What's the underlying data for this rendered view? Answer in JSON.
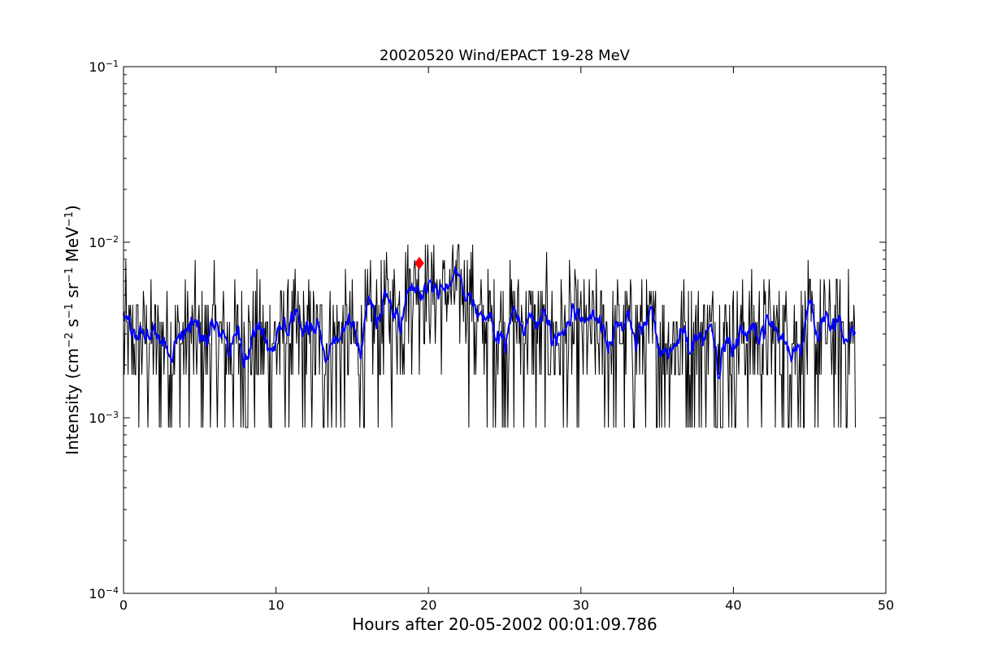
{
  "chart_data": {
    "type": "line",
    "title": "20020520 Wind/EPACT 19-28 MeV",
    "xlabel": "Hours after 20-05-2002 00:01:09.786",
    "ylabel_parts": [
      "Intensity (cm",
      "−2",
      " s",
      "−1",
      " sr",
      "−1",
      " MeV",
      "−1",
      ")"
    ],
    "xlim": [
      0,
      50
    ],
    "ylim": [
      0.0001,
      0.1
    ],
    "yscale": "log",
    "grid": false,
    "x_ticks": [
      0,
      10,
      20,
      30,
      40,
      50
    ],
    "x_tick_labels": [
      "0",
      "10",
      "20",
      "30",
      "40",
      "50"
    ],
    "y_ticks": [
      0.0001,
      0.001,
      0.01,
      0.1
    ],
    "y_tick_labels": [
      {
        "base": "10",
        "exp": "−4"
      },
      {
        "base": "10",
        "exp": "−3"
      },
      {
        "base": "10",
        "exp": "−2"
      },
      {
        "base": "10",
        "exp": "−1"
      }
    ],
    "series": [
      {
        "color": "#000000",
        "style": "raw",
        "x_range": [
          0.0,
          48.0
        ],
        "levels": [
          0.00088,
          0.00176,
          0.00264,
          0.00352,
          0.0044,
          0.00528,
          0.00616,
          0.00704,
          0.00792,
          0.0088,
          0.0097,
          0.0106,
          0.0115
        ],
        "segments": [
          {
            "x": [
              0,
              16
            ],
            "mean": 0.0029
          },
          {
            "x": [
              16,
              17
            ],
            "mean": 0.0034
          },
          {
            "x": [
              17,
              18.5
            ],
            "mean": 0.0045
          },
          {
            "x": [
              18.5,
              20
            ],
            "mean": 0.0062
          },
          {
            "x": [
              20,
              23
            ],
            "mean": 0.0055
          },
          {
            "x": [
              23,
              27
            ],
            "mean": 0.0036
          },
          {
            "x": [
              27,
              48
            ],
            "mean": 0.0031
          }
        ]
      },
      {
        "color": "#0000ff",
        "style": "smoothed",
        "x_range": [
          0.0,
          48.0
        ]
      }
    ],
    "marker": {
      "x": 19.4,
      "y": 0.0076,
      "shape": "diamond",
      "color": "#ff0000"
    }
  }
}
